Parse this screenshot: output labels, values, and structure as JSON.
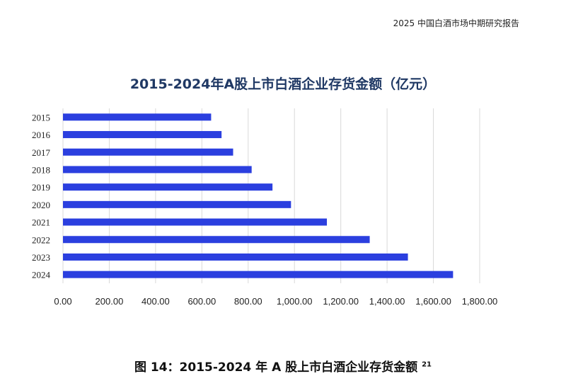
{
  "header": {
    "report_title": "2025 中国白酒市场中期研究报告"
  },
  "caption": {
    "text": "图 14：2015-2024 年 A 股上市白酒企业存货金额",
    "footnote": "21"
  },
  "colors": {
    "bar": "#2b3fdf",
    "grid": "#d9d9d9",
    "title": "#1f3864"
  },
  "chart_data": {
    "type": "bar",
    "orientation": "horizontal",
    "title": "2015-2024年A股上市白酒企业存货金额（亿元）",
    "categories": [
      "2015",
      "2016",
      "2017",
      "2018",
      "2019",
      "2020",
      "2021",
      "2022",
      "2023",
      "2024"
    ],
    "values": [
      640,
      685,
      735,
      815,
      905,
      985,
      1140,
      1325,
      1490,
      1685
    ],
    "xlim": [
      0,
      1800
    ],
    "xticks": [
      "0.00",
      "200.00",
      "400.00",
      "600.00",
      "800.00",
      "1,000.00",
      "1,200.00",
      "1,400.00",
      "1,600.00",
      "1,800.00"
    ],
    "xtick_values": [
      0,
      200,
      400,
      600,
      800,
      1000,
      1200,
      1400,
      1600,
      1800
    ],
    "grid": true,
    "legend": "none"
  }
}
